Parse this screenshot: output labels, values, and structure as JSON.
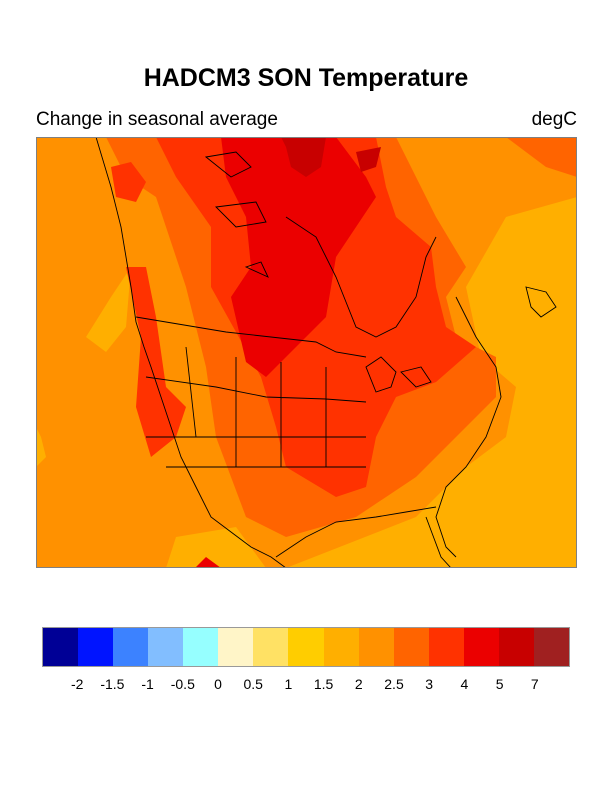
{
  "title": "HADCM3 SON Temperature",
  "subtitle_left": "Change in seasonal average",
  "subtitle_right": "degC",
  "legend": {
    "colors": [
      "#000096",
      "#0014ff",
      "#3c82ff",
      "#82beff",
      "#96ffff",
      "#fff5c8",
      "#ffe164",
      "#ffcd00",
      "#ffaf00",
      "#ff9100",
      "#ff6400",
      "#ff3200",
      "#eb0000",
      "#c80000",
      "#a02020"
    ],
    "labels": [
      "-2",
      "-1.5",
      "-1",
      "-0.5",
      "0",
      "0.5",
      "1",
      "1.5",
      "2",
      "2.5",
      "3",
      "4",
      "5",
      "7"
    ]
  },
  "map": {
    "region": "North America",
    "variable": "SON temperature change",
    "units": "degC"
  }
}
